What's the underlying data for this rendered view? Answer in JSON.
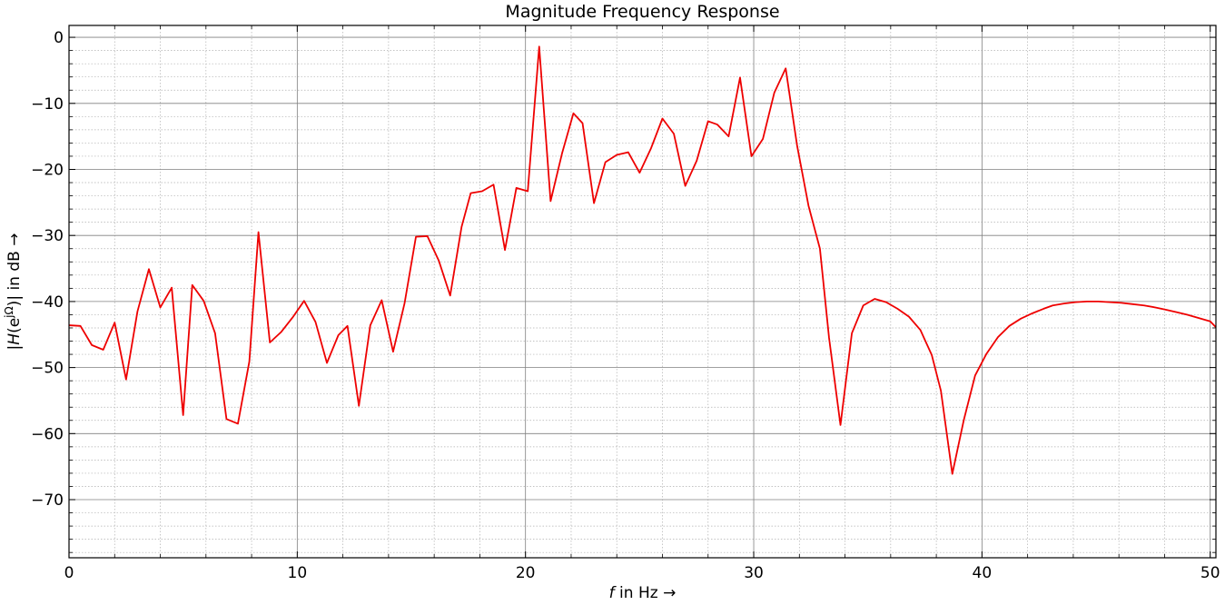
{
  "chart_data": {
    "type": "line",
    "title": "Magnitude Frequency Response",
    "xlabel_italic": "f",
    "xlabel_rest": " in Hz →",
    "ylabel_prefix": "|",
    "ylabel_italic": "H",
    "ylabel_mid": "(e",
    "ylabel_sup": "jΩ",
    "ylabel_suffix": ")| in dB  →",
    "xlim": [
      0,
      50.25
    ],
    "ylim": [
      -78.8,
      1.8
    ],
    "xticks": [
      0,
      10,
      20,
      30,
      40,
      50
    ],
    "xtick_labels": [
      "0",
      "10",
      "20",
      "30",
      "40",
      "50"
    ],
    "yticks": [
      0,
      -10,
      -20,
      -30,
      -40,
      -50,
      -60,
      -70
    ],
    "ytick_labels": [
      "0",
      "−10",
      "−20",
      "−30",
      "−40",
      "−50",
      "−60",
      "−70"
    ],
    "x_minor_step": 2,
    "y_minor_step": 2,
    "grid": true,
    "minor_grid": true,
    "series": [
      {
        "color": "#ee0000",
        "x": [
          0,
          0.5,
          1.0,
          1.5,
          2.0,
          2.5,
          3.0,
          3.5,
          4.0,
          4.5,
          5.0,
          5.4,
          5.9,
          6.4,
          6.9,
          7.4,
          7.9,
          8.3,
          8.8,
          9.3,
          9.8,
          10.3,
          10.8,
          11.3,
          11.8,
          12.2,
          12.7,
          13.2,
          13.7,
          14.2,
          14.7,
          15.2,
          15.7,
          16.2,
          16.7,
          17.2,
          17.6,
          18.1,
          18.6,
          19.1,
          19.6,
          20.1,
          20.6,
          21.1,
          21.6,
          22.1,
          22.5,
          23.0,
          23.5,
          24.0,
          24.5,
          25.0,
          25.5,
          26.0,
          26.5,
          27.0,
          27.5,
          28.0,
          28.4,
          28.9,
          29.4,
          29.9,
          30.4,
          30.9,
          31.4,
          31.9,
          32.4,
          32.9,
          33.3,
          33.8,
          34.3,
          34.8,
          35.3,
          35.8,
          36.3,
          36.8,
          37.3,
          37.8,
          38.2,
          38.7,
          39.2,
          39.7,
          40.2,
          40.7,
          41.2,
          41.7,
          42.2,
          42.7,
          43.1,
          43.6,
          44.1,
          44.6,
          45.1,
          45.6,
          46.1,
          46.6,
          47.1,
          47.6,
          48.0,
          48.5,
          49.0,
          49.5,
          50.0,
          50.25
        ],
        "y": [
          -43.6,
          -43.7,
          -46.6,
          -47.3,
          -43.2,
          -51.8,
          -41.5,
          -35.1,
          -40.9,
          -37.9,
          -57.2,
          -37.5,
          -39.9,
          -44.8,
          -57.8,
          -58.5,
          -49.1,
          -29.5,
          -46.2,
          -44.6,
          -42.4,
          -39.9,
          -43.1,
          -49.3,
          -45.1,
          -43.7,
          -55.8,
          -43.6,
          -39.8,
          -47.6,
          -40.3,
          -30.2,
          -30.1,
          -33.8,
          -39.1,
          -28.7,
          -23.6,
          -23.3,
          -22.3,
          -32.2,
          -22.8,
          -23.3,
          -1.4,
          -24.8,
          -17.6,
          -11.5,
          -13.0,
          -25.1,
          -18.9,
          -17.8,
          -17.4,
          -20.5,
          -16.8,
          -12.3,
          -14.6,
          -22.5,
          -18.7,
          -12.7,
          -13.2,
          -15.0,
          -6.1,
          -18.0,
          -15.4,
          -8.4,
          -4.7,
          -16.4,
          -25.5,
          -32.0,
          -45.5,
          -58.7,
          -44.8,
          -40.6,
          -39.6,
          -40.1,
          -41.1,
          -42.3,
          -44.3,
          -48.1,
          -53.5,
          -66.1,
          -58.0,
          -51.2,
          -47.9,
          -45.4,
          -43.7,
          -42.6,
          -41.8,
          -41.1,
          -40.6,
          -40.3,
          -40.1,
          -40.0,
          -40.0,
          -40.1,
          -40.2,
          -40.4,
          -40.6,
          -40.9,
          -41.2,
          -41.6,
          -42.0,
          -42.5,
          -43.0,
          -43.9
        ]
      }
    ]
  }
}
